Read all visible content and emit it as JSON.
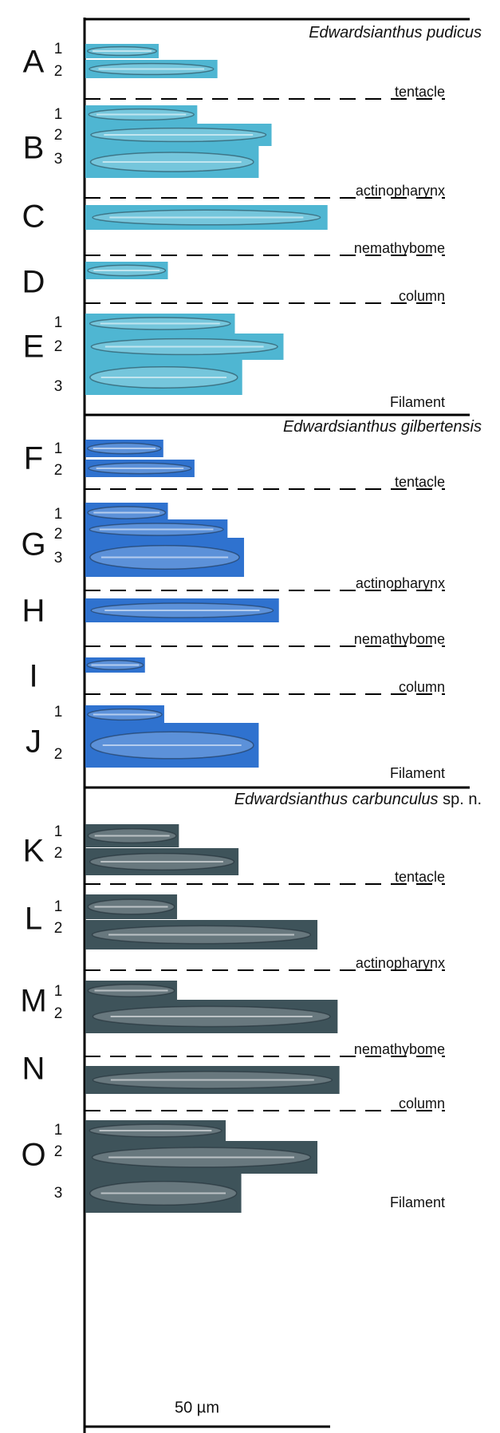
{
  "sections": [
    {
      "title": "Edwardsianthus pudicus",
      "color": "#4fb6d2",
      "groups": [
        {
          "letter": "A",
          "numbers": [
            "1",
            "2"
          ],
          "tissue": "tentacle"
        },
        {
          "letter": "B",
          "numbers": [
            "1",
            "2",
            "3"
          ],
          "tissue": "actinopharynx"
        },
        {
          "letter": "C",
          "numbers": [],
          "tissue": "nemathybome"
        },
        {
          "letter": "D",
          "numbers": [],
          "tissue": "column"
        },
        {
          "letter": "E",
          "numbers": [
            "1",
            "2",
            "3"
          ],
          "tissue": "Filament"
        }
      ]
    },
    {
      "title": "Edwardsianthus gilbertensis",
      "color": "#2f72cf",
      "groups": [
        {
          "letter": "F",
          "numbers": [
            "1",
            "2"
          ],
          "tissue": "tentacle"
        },
        {
          "letter": "G",
          "numbers": [
            "1",
            "2",
            "3"
          ],
          "tissue": "actinopharynx"
        },
        {
          "letter": "H",
          "numbers": [],
          "tissue": "nemathybome"
        },
        {
          "letter": "I",
          "numbers": [],
          "tissue": "column"
        },
        {
          "letter": "J",
          "numbers": [
            "1",
            "2"
          ],
          "tissue": "Filament"
        }
      ]
    },
    {
      "title": "Edwardsianthus carbunculus",
      "suffix": "sp. n.",
      "color": "#3e535a",
      "groups": [
        {
          "letter": "K",
          "numbers": [
            "1",
            "2"
          ],
          "tissue": "tentacle"
        },
        {
          "letter": "L",
          "numbers": [
            "1",
            "2"
          ],
          "tissue": "actinopharynx"
        },
        {
          "letter": "M",
          "numbers": [
            "1",
            "2"
          ],
          "tissue": "nemathybome"
        },
        {
          "letter": "N",
          "numbers": [],
          "tissue": "column"
        },
        {
          "letter": "O",
          "numbers": [
            "1",
            "2",
            "3"
          ],
          "tissue": "Filament"
        }
      ]
    }
  ],
  "scale_bar": "50 µm"
}
